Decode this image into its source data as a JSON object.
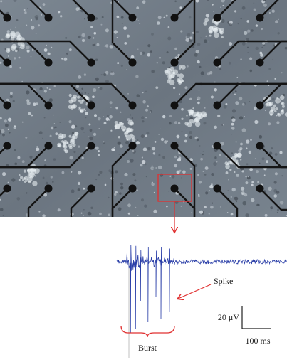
{
  "annotations": {
    "spike": "Spike",
    "burst": "Burst",
    "voltage_scale": "20 μV",
    "time_scale": "100 ms"
  }
}
